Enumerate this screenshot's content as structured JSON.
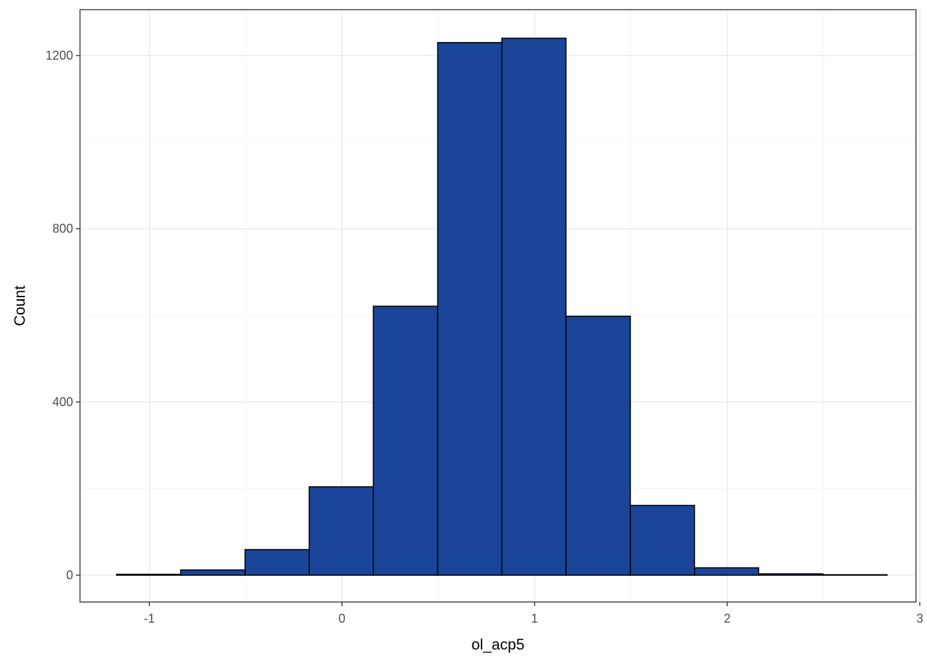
{
  "chart_data": {
    "type": "bar",
    "subtype": "histogram",
    "xlabel": "ol_acp5",
    "ylabel": "Count",
    "xlim": [
      -1.36,
      2.98
    ],
    "ylim": [
      -62,
      1306
    ],
    "x_ticks": [
      -1,
      0,
      1,
      2,
      3
    ],
    "x_tick_labels": [
      "-1",
      "0",
      "1",
      "2",
      "3"
    ],
    "y_ticks": [
      0,
      400,
      800,
      1200
    ],
    "y_tick_labels": [
      "0",
      "400",
      "800",
      "1200"
    ],
    "y_minor_ticks": [
      200,
      600,
      1000
    ],
    "grid": true,
    "bins": [
      {
        "x0": -1.17,
        "x1": -0.837,
        "count": 2
      },
      {
        "x0": -0.837,
        "x1": -0.503,
        "count": 12
      },
      {
        "x0": -0.503,
        "x1": -0.17,
        "count": 59
      },
      {
        "x0": -0.17,
        "x1": 0.163,
        "count": 204
      },
      {
        "x0": 0.163,
        "x1": 0.497,
        "count": 621
      },
      {
        "x0": 0.497,
        "x1": 0.83,
        "count": 1230
      },
      {
        "x0": 0.83,
        "x1": 1.163,
        "count": 1240
      },
      {
        "x0": 1.163,
        "x1": 1.497,
        "count": 598
      },
      {
        "x0": 1.497,
        "x1": 1.83,
        "count": 161
      },
      {
        "x0": 1.83,
        "x1": 2.163,
        "count": 17
      },
      {
        "x0": 2.163,
        "x1": 2.497,
        "count": 3
      },
      {
        "x0": 2.497,
        "x1": 2.83,
        "count": 1
      }
    ],
    "colors": {
      "bar_fill": "#1a4599",
      "bar_stroke": "#000000",
      "grid_major": "#ebebeb",
      "grid_minor": "#f3f3f3",
      "panel_border": "#333333"
    }
  }
}
